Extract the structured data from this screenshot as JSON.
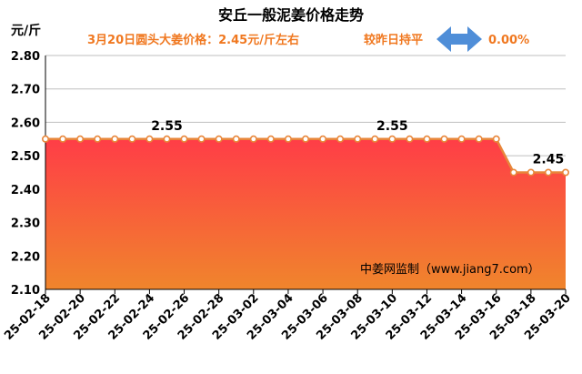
{
  "chart_data": {
    "type": "area",
    "title": "安丘一般泥姜价格走势",
    "ylabel": "元/斤",
    "subtitle_price": "3月20日圆头大姜价格：2.45元/斤左右",
    "subtitle_change": "较昨日持平",
    "change_pct": "0.00%",
    "watermark": "中姜网监制（www.jiang7.com）",
    "ylim": [
      2.1,
      2.8
    ],
    "yticks": [
      "2.10",
      "2.20",
      "2.30",
      "2.40",
      "2.50",
      "2.60",
      "2.70",
      "2.80"
    ],
    "x": [
      "25-02-18",
      "25-02-19",
      "25-02-20",
      "25-02-21",
      "25-02-22",
      "25-02-23",
      "25-02-24",
      "25-02-25",
      "25-02-26",
      "25-02-27",
      "25-02-28",
      "25-03-01",
      "25-03-02",
      "25-03-03",
      "25-03-04",
      "25-03-05",
      "25-03-06",
      "25-03-07",
      "25-03-08",
      "25-03-09",
      "25-03-10",
      "25-03-11",
      "25-03-12",
      "25-03-13",
      "25-03-14",
      "25-03-15",
      "25-03-16",
      "25-03-17",
      "25-03-18",
      "25-03-19",
      "25-03-20"
    ],
    "xticks": [
      "25-02-18",
      "25-02-20",
      "25-02-22",
      "25-02-24",
      "25-02-26",
      "25-02-28",
      "25-03-02",
      "25-03-04",
      "25-03-06",
      "25-03-08",
      "25-03-10",
      "25-03-12",
      "25-03-14",
      "25-03-16",
      "25-03-18",
      "25-03-20"
    ],
    "values": [
      2.55,
      2.55,
      2.55,
      2.55,
      2.55,
      2.55,
      2.55,
      2.55,
      2.55,
      2.55,
      2.55,
      2.55,
      2.55,
      2.55,
      2.55,
      2.55,
      2.55,
      2.55,
      2.55,
      2.55,
      2.55,
      2.55,
      2.55,
      2.55,
      2.55,
      2.55,
      2.55,
      2.45,
      2.45,
      2.45,
      2.45
    ],
    "data_labels": [
      {
        "index": 7,
        "text": "2.55"
      },
      {
        "index": 20,
        "text": "2.55"
      },
      {
        "index": 29,
        "text": "2.45"
      }
    ],
    "colors": {
      "line": "#e8863a",
      "fill_top": "#ff3d47",
      "fill_bottom": "#f0852c",
      "subtitle": "#f07820",
      "arrow": "#4f8ed8",
      "title": "#000000",
      "axis": "#000000",
      "grid": "#bfbfbf"
    }
  }
}
